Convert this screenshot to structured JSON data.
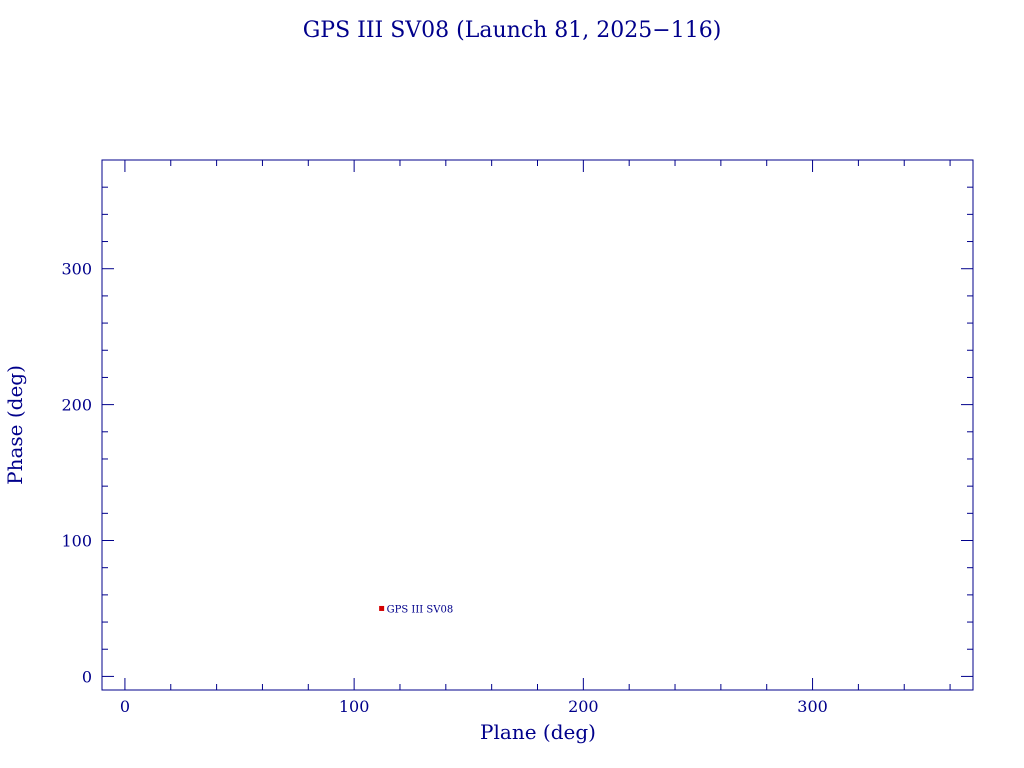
{
  "chart_data": {
    "type": "scatter",
    "title": "GPS III SV08 (Launch 81, 2025−116)",
    "xlabel": "Plane (deg)",
    "ylabel": "Phase (deg)",
    "xlim": [
      -10,
      370
    ],
    "ylim": [
      -10,
      380
    ],
    "x_ticks": [
      0,
      100,
      200,
      300
    ],
    "y_ticks": [
      0,
      100,
      200,
      300
    ],
    "x_tick_labels": [
      "0",
      "100",
      "200",
      "300"
    ],
    "y_tick_labels": [
      "0",
      "100",
      "200",
      "300"
    ],
    "x_minor_step": 20,
    "y_minor_step": 20,
    "grid": false,
    "legend": "none",
    "points": [
      {
        "x": 112,
        "y": 50,
        "label": "GPS III SV08"
      }
    ],
    "colors": {
      "text": "#00008b",
      "axes": "#00008b",
      "marker": "#d40000"
    }
  }
}
